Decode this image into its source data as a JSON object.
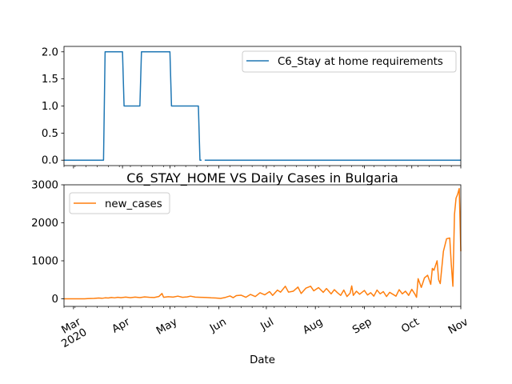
{
  "colors": {
    "stay_home": "#1f77b4",
    "new_cases": "#ff7f0e"
  },
  "chart_data": [
    {
      "type": "line",
      "title": "",
      "xlabel": "",
      "ylabel": "",
      "ylim": [
        -0.1,
        2.1
      ],
      "y_ticks": [
        0.0,
        0.5,
        1.0,
        1.5,
        2.0
      ],
      "y_tick_labels": [
        "0.0",
        "0.5",
        "1.0",
        "1.5",
        "2.0"
      ],
      "legend_placement": "top-right",
      "grid": false,
      "series": [
        {
          "name": "C6_Stay at home requirements",
          "points": [
            [
              "2020-02-24",
              0
            ],
            [
              "2020-03-20",
              0
            ],
            [
              "2020-03-21",
              2
            ],
            [
              "2020-04-01",
              2
            ],
            [
              "2020-04-02",
              1
            ],
            [
              "2020-04-12",
              1
            ],
            [
              "2020-04-13",
              2
            ],
            [
              "2020-05-01",
              2
            ],
            [
              "2020-05-02",
              1
            ],
            [
              "2020-05-19",
              1
            ],
            [
              "2020-05-20",
              0
            ],
            [
              "2020-05-21",
              0
            ],
            null,
            [
              "2020-05-23",
              0
            ],
            [
              "2020-11-01",
              0
            ]
          ]
        }
      ]
    },
    {
      "type": "line",
      "title": "C6_STAY_HOME VS Daily Cases in Bulgaria",
      "xlabel": "Date",
      "ylabel": "",
      "ylim": [
        -200,
        3000
      ],
      "y_ticks": [
        0,
        1000,
        2000,
        3000
      ],
      "y_tick_labels": [
        "0",
        "1000",
        "2000",
        "3000"
      ],
      "x_ticks": [
        "2020-03-01",
        "2020-04-01",
        "2020-05-01",
        "2020-06-01",
        "2020-07-01",
        "2020-08-01",
        "2020-09-01",
        "2020-10-01",
        "2020-11-01"
      ],
      "x_tick_labels": [
        "Mar\n2020",
        "Apr",
        "May",
        "Jun",
        "Jul",
        "Aug",
        "Sep",
        "Oct",
        "Nov"
      ],
      "xlim": [
        "2020-02-24",
        "2020-11-01"
      ],
      "legend_placement": "top-left",
      "grid": false,
      "series": [
        {
          "name": "new_cases",
          "points": [
            [
              "2020-02-24",
              0
            ],
            [
              "2020-03-08",
              0
            ],
            [
              "2020-03-10",
              5
            ],
            [
              "2020-03-14",
              10
            ],
            [
              "2020-03-17",
              20
            ],
            [
              "2020-03-19",
              12
            ],
            [
              "2020-03-21",
              25
            ],
            [
              "2020-03-23",
              20
            ],
            [
              "2020-03-25",
              35
            ],
            [
              "2020-03-27",
              25
            ],
            [
              "2020-03-29",
              40
            ],
            [
              "2020-03-31",
              28
            ],
            [
              "2020-04-03",
              45
            ],
            [
              "2020-04-06",
              30
            ],
            [
              "2020-04-09",
              45
            ],
            [
              "2020-04-12",
              32
            ],
            [
              "2020-04-15",
              50
            ],
            [
              "2020-04-18",
              40
            ],
            [
              "2020-04-21",
              35
            ],
            [
              "2020-04-24",
              60
            ],
            [
              "2020-04-26",
              140
            ],
            [
              "2020-04-27",
              40
            ],
            [
              "2020-04-30",
              55
            ],
            [
              "2020-05-03",
              45
            ],
            [
              "2020-05-06",
              70
            ],
            [
              "2020-05-09",
              40
            ],
            [
              "2020-05-12",
              50
            ],
            [
              "2020-05-14",
              70
            ],
            [
              "2020-05-17",
              45
            ],
            [
              "2020-05-20",
              40
            ],
            [
              "2020-05-24",
              35
            ],
            [
              "2020-05-27",
              25
            ],
            [
              "2020-05-30",
              20
            ],
            [
              "2020-06-02",
              10
            ],
            [
              "2020-06-05",
              35
            ],
            [
              "2020-06-08",
              75
            ],
            [
              "2020-06-10",
              30
            ],
            [
              "2020-06-12",
              85
            ],
            [
              "2020-06-15",
              95
            ],
            [
              "2020-06-18",
              40
            ],
            [
              "2020-06-21",
              115
            ],
            [
              "2020-06-24",
              60
            ],
            [
              "2020-06-27",
              160
            ],
            [
              "2020-06-30",
              105
            ],
            [
              "2020-07-03",
              190
            ],
            [
              "2020-07-05",
              90
            ],
            [
              "2020-07-08",
              230
            ],
            [
              "2020-07-10",
              175
            ],
            [
              "2020-07-13",
              330
            ],
            [
              "2020-07-15",
              175
            ],
            [
              "2020-07-18",
              200
            ],
            [
              "2020-07-21",
              310
            ],
            [
              "2020-07-23",
              140
            ],
            [
              "2020-07-26",
              280
            ],
            [
              "2020-07-29",
              330
            ],
            [
              "2020-07-31",
              210
            ],
            [
              "2020-08-03",
              295
            ],
            [
              "2020-08-06",
              170
            ],
            [
              "2020-08-08",
              270
            ],
            [
              "2020-08-11",
              130
            ],
            [
              "2020-08-13",
              240
            ],
            [
              "2020-08-15",
              160
            ],
            [
              "2020-08-17",
              90
            ],
            [
              "2020-08-19",
              230
            ],
            [
              "2020-08-21",
              60
            ],
            [
              "2020-08-23",
              150
            ],
            [
              "2020-08-24",
              340
            ],
            [
              "2020-08-25",
              90
            ],
            [
              "2020-08-27",
              200
            ],
            [
              "2020-08-29",
              120
            ],
            [
              "2020-09-01",
              220
            ],
            [
              "2020-09-03",
              100
            ],
            [
              "2020-09-05",
              160
            ],
            [
              "2020-09-07",
              70
            ],
            [
              "2020-09-09",
              230
            ],
            [
              "2020-09-11",
              130
            ],
            [
              "2020-09-13",
              190
            ],
            [
              "2020-09-15",
              60
            ],
            [
              "2020-09-17",
              170
            ],
            [
              "2020-09-19",
              120
            ],
            [
              "2020-09-21",
              70
            ],
            [
              "2020-09-23",
              240
            ],
            [
              "2020-09-25",
              130
            ],
            [
              "2020-09-27",
              200
            ],
            [
              "2020-09-29",
              90
            ],
            [
              "2020-10-01",
              250
            ],
            [
              "2020-10-03",
              120
            ],
            [
              "2020-10-04",
              40
            ],
            [
              "2020-10-05",
              530
            ],
            [
              "2020-10-07",
              300
            ],
            [
              "2020-10-08",
              420
            ],
            [
              "2020-10-09",
              550
            ],
            [
              "2020-10-11",
              620
            ],
            [
              "2020-10-13",
              380
            ],
            [
              "2020-10-14",
              800
            ],
            [
              "2020-10-15",
              750
            ],
            [
              "2020-10-17",
              1000
            ],
            [
              "2020-10-18",
              500
            ],
            [
              "2020-10-19",
              400
            ],
            [
              "2020-10-21",
              1250
            ],
            [
              "2020-10-23",
              1580
            ],
            [
              "2020-10-25",
              1600
            ],
            [
              "2020-10-26",
              900
            ],
            [
              "2020-10-27",
              330
            ],
            [
              "2020-10-28",
              2220
            ],
            [
              "2020-10-29",
              2650
            ],
            [
              "2020-10-30",
              2750
            ],
            [
              "2020-10-31",
              2900
            ],
            [
              "2020-11-01",
              1250
            ]
          ]
        }
      ]
    }
  ]
}
